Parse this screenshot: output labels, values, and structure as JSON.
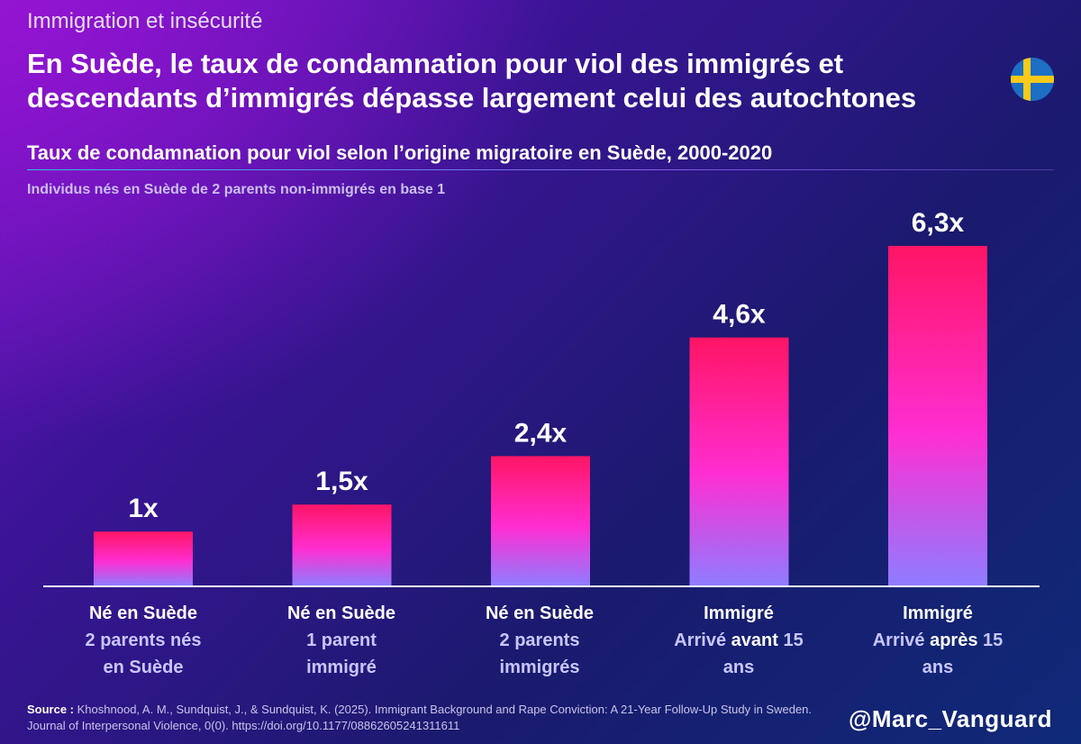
{
  "header": {
    "kicker": "Immigration et insécurité",
    "title": "En Suède, le taux de condamnation pour viol des immigrés et descendants d’immigrés dépasse largement celui des autochtones"
  },
  "flag_icon": "sweden-flag-icon",
  "colors": {
    "bar_top": "#ff1565",
    "bar_mid": "#ff2ed2",
    "bar_bottom": "#8f7cff",
    "accent_text": "#c8c6ff"
  },
  "chart_data": {
    "type": "bar",
    "title": "Taux de condamnation pour viol selon l’origine migratoire en Suède, 2000-2020",
    "subtitle": "Individus nés en Suède de 2 parents non-immigrés en base 1",
    "categories": [
      {
        "line1": "Né en Suède",
        "line2": "2 parents nés en Suède"
      },
      {
        "line1": "Né en Suède",
        "line2": "1 parent immigré"
      },
      {
        "line1": "Né en Suède",
        "line2": "2 parents immigrés"
      },
      {
        "line1": "Immigré",
        "line2_pre": "Arrivé ",
        "line2_em": "avant",
        "line2_post": " 15 ans"
      },
      {
        "line1": "Immigré",
        "line2_pre": "Arrivé ",
        "line2_em": "après",
        "line2_post": " 15 ans"
      }
    ],
    "values": [
      1,
      1.5,
      2.4,
      4.6,
      6.3
    ],
    "data_labels": [
      "1x",
      "1,5x",
      "2,4x",
      "4,6x",
      "6,3x"
    ],
    "ylim": [
      0,
      6.3
    ],
    "grid": false,
    "legend": "none"
  },
  "source": {
    "label": "Source :",
    "text": "Khoshnood, A. M., Sundquist, J., & Sundquist, K. (2025). Immigrant Background and Rape Conviction: A 21-Year Follow-Up Study in Sweden. Journal of Interpersonal Violence, 0(0). https://doi.org/10.1177/08862605241311611"
  },
  "handle": "@Marc_Vanguard"
}
